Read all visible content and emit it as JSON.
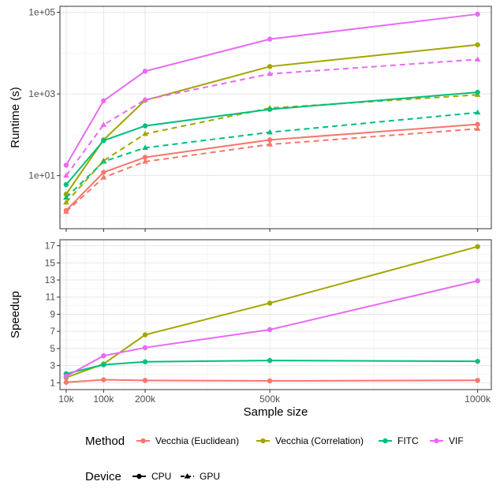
{
  "chart_data": [
    {
      "type": "line",
      "panel": "top",
      "ylabel": "Runtime (s)",
      "yscale": "log10",
      "ylim": [
        0.5,
        140000
      ],
      "yticks": [
        {
          "value": 10,
          "label": "1e+01"
        },
        {
          "value": 1000,
          "label": "1e+03"
        },
        {
          "value": 100000,
          "label": "1e+05"
        }
      ],
      "series": [
        {
          "method": "Vecchia (Euclidean)",
          "device": "CPU",
          "values": [
            1.4,
            12,
            28,
            75,
            180
          ]
        },
        {
          "method": "Vecchia (Euclidean)",
          "device": "GPU",
          "values": [
            1.3,
            9,
            22,
            58,
            140
          ]
        },
        {
          "method": "Vecchia (Correlation)",
          "device": "CPU",
          "values": [
            3.5,
            75,
            700,
            4700,
            16000
          ]
        },
        {
          "method": "Vecchia (Correlation)",
          "device": "GPU",
          "values": [
            2.2,
            23,
            105,
            450,
            950
          ]
        },
        {
          "method": "FITC",
          "device": "CPU",
          "values": [
            6,
            72,
            165,
            420,
            1100
          ]
        },
        {
          "method": "FITC",
          "device": "GPU",
          "values": [
            2.9,
            22,
            48,
            115,
            350
          ]
        },
        {
          "method": "VIF",
          "device": "CPU",
          "values": [
            18,
            680,
            3600,
            22000,
            90000
          ]
        },
        {
          "method": "VIF",
          "device": "GPU",
          "values": [
            10,
            175,
            720,
            3100,
            7000
          ]
        }
      ]
    },
    {
      "type": "line",
      "panel": "bottom",
      "ylabel": "Speedup",
      "ylim": [
        0.2,
        17.7
      ],
      "yticks": [
        {
          "value": 1,
          "label": "1"
        },
        {
          "value": 3,
          "label": "3"
        },
        {
          "value": 5,
          "label": "5"
        },
        {
          "value": 7,
          "label": "7"
        },
        {
          "value": 9,
          "label": "9"
        },
        {
          "value": 11,
          "label": "11"
        },
        {
          "value": 13,
          "label": "13"
        },
        {
          "value": 15,
          "label": "15"
        },
        {
          "value": 17,
          "label": "17"
        }
      ],
      "series": [
        {
          "method": "Vecchia (Euclidean)",
          "values": [
            1.05,
            1.35,
            1.27,
            1.22,
            1.28
          ]
        },
        {
          "method": "Vecchia (Correlation)",
          "values": [
            1.6,
            3.2,
            6.6,
            10.3,
            16.9
          ]
        },
        {
          "method": "FITC",
          "values": [
            2.05,
            3.1,
            3.45,
            3.6,
            3.5
          ]
        },
        {
          "method": "VIF",
          "values": [
            1.75,
            4.15,
            5.1,
            7.2,
            12.9
          ]
        }
      ]
    }
  ],
  "x": [
    10000,
    100000,
    200000,
    500000,
    1000000
  ],
  "xtick_labels": [
    "10k",
    "100k",
    "200k",
    "500k",
    "1000k"
  ],
  "xlabel": "Sample size",
  "colors": {
    "Vecchia (Euclidean)": "#F8766D",
    "Vecchia (Correlation)": "#A3A500",
    "FITC": "#00BF7D",
    "VIF": "#E76BF3"
  },
  "legend": {
    "method_title": "Method",
    "methods": [
      "Vecchia (Euclidean)",
      "Vecchia (Correlation)",
      "FITC",
      "VIF"
    ],
    "device_title": "Device",
    "devices": [
      "CPU",
      "GPU"
    ]
  }
}
